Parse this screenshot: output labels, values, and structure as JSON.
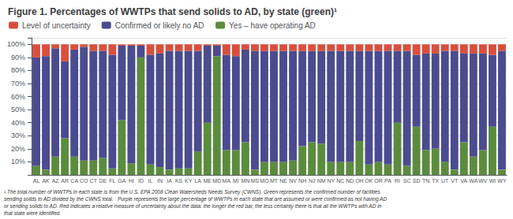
{
  "chart_data": {
    "type": "bar",
    "title": "Figure 1. Percentages of WWTPs that send solids to AD, by state (green)¹",
    "categories": [
      "AL",
      "AK",
      "AZ",
      "AR",
      "CA",
      "CO",
      "CT",
      "DE",
      "FL",
      "GA",
      "HI",
      "ID",
      "IL",
      "IN",
      "IA",
      "KS",
      "KY",
      "LA",
      "ME",
      "MD",
      "MA",
      "MI",
      "MN",
      "MS",
      "MO",
      "MT",
      "NE",
      "NV",
      "NH",
      "NJ",
      "NM",
      "NY",
      "NC",
      "ND",
      "OH",
      "OK",
      "OR",
      "PA",
      "RI",
      "SC",
      "SD",
      "TN",
      "TX",
      "UT",
      "VT",
      "VA",
      "WA",
      "WV",
      "WI",
      "WY"
    ],
    "series": [
      {
        "name": "Yes – have operating AD",
        "color": "#5b8c3e",
        "values": [
          7,
          4,
          14,
          28,
          14,
          11,
          11,
          13,
          5,
          42,
          9,
          90,
          8,
          6,
          4,
          5,
          5,
          18,
          40,
          91,
          19,
          19,
          25,
          4,
          10,
          10,
          10,
          11,
          22,
          25,
          24,
          10,
          10,
          10,
          26,
          8,
          10,
          8,
          40,
          7,
          37,
          19,
          20,
          10,
          4,
          25,
          14,
          19,
          37,
          4
        ]
      },
      {
        "name": "Confirmed or likely no AD",
        "color": "#4b4b8f",
        "values": [
          83,
          87,
          83,
          59,
          82,
          87,
          84,
          82,
          87,
          57,
          90,
          9,
          84,
          87,
          91,
          90,
          90,
          77,
          59,
          8,
          73,
          72,
          71,
          91,
          85,
          85,
          85,
          84,
          73,
          70,
          71,
          85,
          85,
          85,
          69,
          87,
          85,
          87,
          55,
          88,
          55,
          74,
          73,
          85,
          91,
          68,
          79,
          74,
          55,
          91
        ]
      },
      {
        "name": "Level of uncertainty",
        "color": "#d94f3d",
        "values": [
          10,
          9,
          3,
          13,
          4,
          2,
          5,
          5,
          8,
          1,
          1,
          1,
          8,
          7,
          5,
          5,
          5,
          5,
          1,
          1,
          8,
          9,
          4,
          5,
          5,
          5,
          5,
          5,
          5,
          5,
          5,
          5,
          5,
          5,
          5,
          5,
          5,
          5,
          5,
          5,
          8,
          7,
          7,
          5,
          5,
          7,
          7,
          7,
          8,
          5
        ]
      }
    ],
    "stacked": true,
    "ylim": [
      0,
      105
    ],
    "yticks": [
      {
        "value": 0,
        "label": ""
      },
      {
        "value": 10,
        "label": "10%"
      },
      {
        "value": 20,
        "label": "20%"
      },
      {
        "value": 30,
        "label": "30%"
      },
      {
        "value": 40,
        "label": "40%"
      },
      {
        "value": 50,
        "label": "50%"
      },
      {
        "value": 60,
        "label": "60%"
      },
      {
        "value": 70,
        "label": "70%"
      },
      {
        "value": 80,
        "label": "80%"
      },
      {
        "value": 90,
        "label": "90%"
      },
      {
        "value": 100,
        "label": "100%"
      }
    ],
    "grid": true,
    "legend": "upper left",
    "annotations": [
      "¹ The total number of WWTPs in each state is from the U.S. EPA 2008 Clean Watersheds Needs Survey (CWNS). Green represents the confirmed number of facilities\nsending solids to AD divided by the CWNS total.   Purple represents the large percentage of WWTPs in each state that are assumed or were confirmed as not having AD\nor sending solids to AD. Red indicates a relative measure of uncertainty about the data: the longer the red bar, the less certainty there is that all the WWTPs with AD in\nthat state were identified."
    ]
  }
}
